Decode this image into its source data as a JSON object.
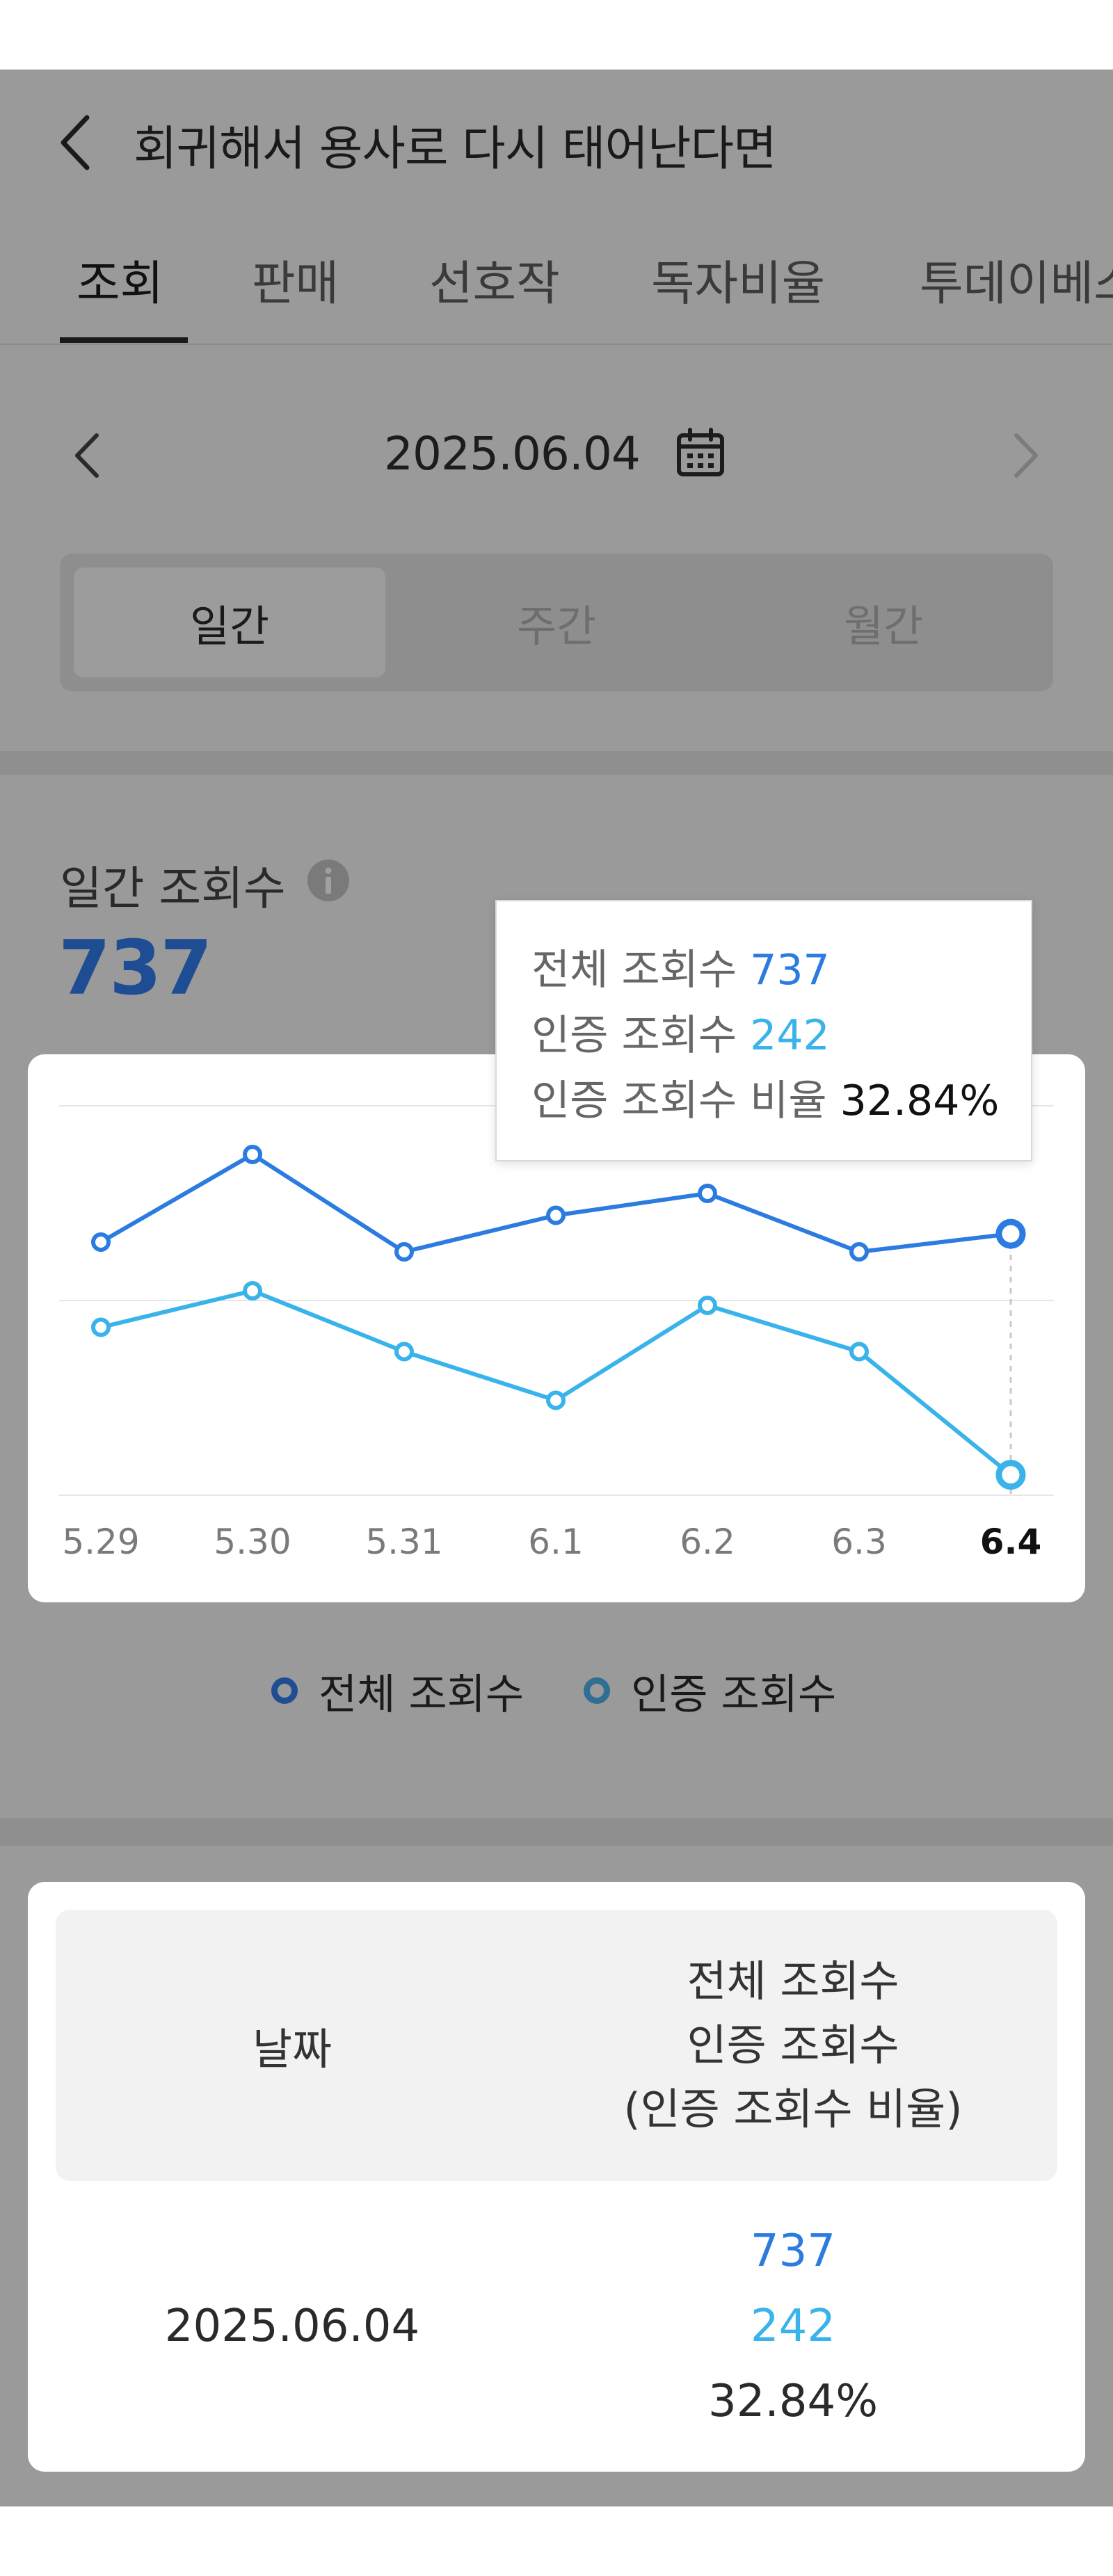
{
  "header": {
    "title": "회귀해서 용사로 다시 태어난다면",
    "tabs": [
      "조회",
      "판매",
      "선호작",
      "독자비율",
      "투데이베스트"
    ],
    "active_tab": "조회"
  },
  "date_nav": {
    "date": "2025.06.04"
  },
  "period": {
    "options": [
      "일간",
      "주간",
      "월간"
    ],
    "selected": "일간"
  },
  "metric": {
    "label": "일간 조회수",
    "value": "737"
  },
  "tooltip": {
    "total_label": "전체 조회수",
    "total_value": "737",
    "cert_label": "인증 조회수",
    "cert_value": "242",
    "ratio_label": "인증 조회수 비율",
    "ratio_value": "32.84%"
  },
  "legend": {
    "total": "전체 조회수",
    "cert": "인증 조회수"
  },
  "colors": {
    "total_series": "#2c7be0",
    "cert_series": "#3ab3ea",
    "metric_value": "#1f4d93"
  },
  "chart_data": {
    "type": "line",
    "categories": [
      "5.29",
      "5.30",
      "5.31",
      "6.1",
      "6.2",
      "6.3",
      "6.4"
    ],
    "selected_category": "6.4",
    "series": [
      {
        "name": "전체 조회수",
        "values": [
          720,
          900,
          700,
          775,
          820,
          700,
          737
        ]
      },
      {
        "name": "인증 조회수",
        "values": [
          545,
          620,
          495,
          395,
          590,
          495,
          242
        ]
      }
    ],
    "grid": true,
    "legend": "bottom"
  },
  "table": {
    "header_date": "날짜",
    "header_total": "전체 조회수",
    "header_cert": "인증 조회수",
    "header_ratio": "(인증 조회수 비율)",
    "row": {
      "date": "2025.06.04",
      "total": "737",
      "cert": "242",
      "ratio": "32.84%"
    }
  }
}
